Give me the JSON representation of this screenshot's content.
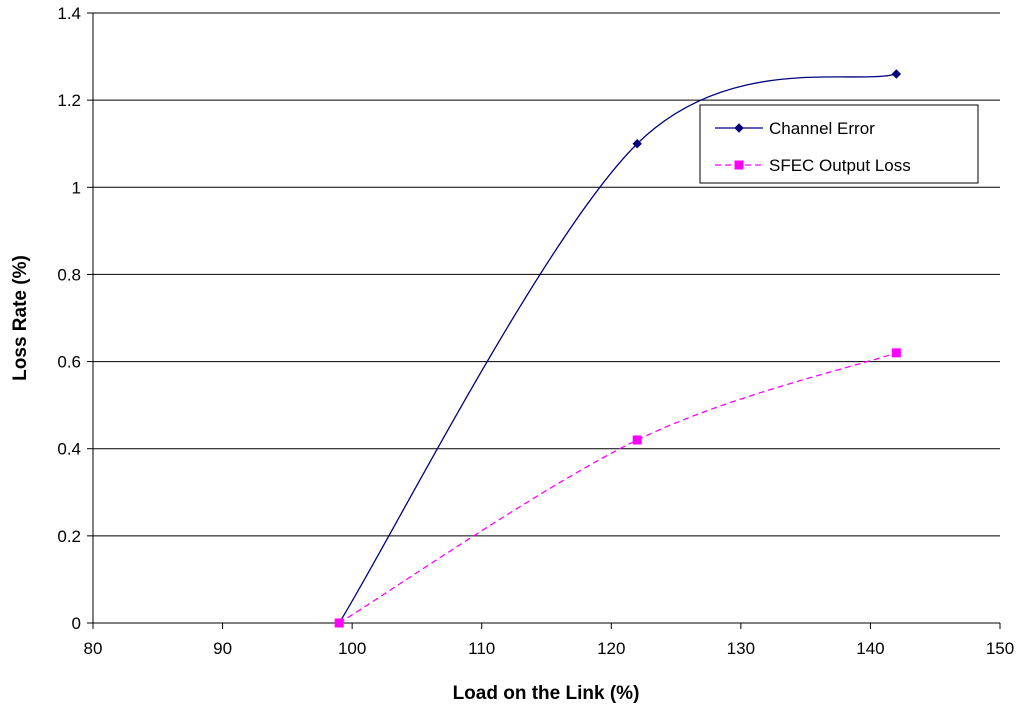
{
  "chart_data": {
    "type": "line",
    "title": "",
    "xlabel": "Load on the Link (%)",
    "ylabel": "Loss Rate (%)",
    "xlim": [
      80,
      150
    ],
    "ylim": [
      0,
      1.4
    ],
    "x_ticks": [
      80,
      90,
      100,
      110,
      120,
      130,
      140,
      150
    ],
    "y_ticks": [
      0,
      0.2,
      0.4,
      0.6,
      0.8,
      1,
      1.2,
      1.4
    ],
    "y_tick_labels": [
      "0",
      "0.2",
      "0.4",
      "0.6",
      "0.8",
      "1",
      "1.2",
      "1.4"
    ],
    "grid": "horizontal",
    "legend_position": "top-right",
    "series": [
      {
        "name": "Channel Error",
        "x": [
          99,
          122,
          142
        ],
        "values": [
          0,
          1.1,
          1.26
        ],
        "color": "#000080",
        "marker": "diamond",
        "line_style": "solid",
        "smoothed": true
      },
      {
        "name": "SFEC Output Loss",
        "x": [
          99,
          122,
          142
        ],
        "values": [
          0,
          0.42,
          0.62
        ],
        "color": "#ff00ff",
        "marker": "square",
        "line_style": "dashed",
        "smoothed": true
      }
    ]
  }
}
